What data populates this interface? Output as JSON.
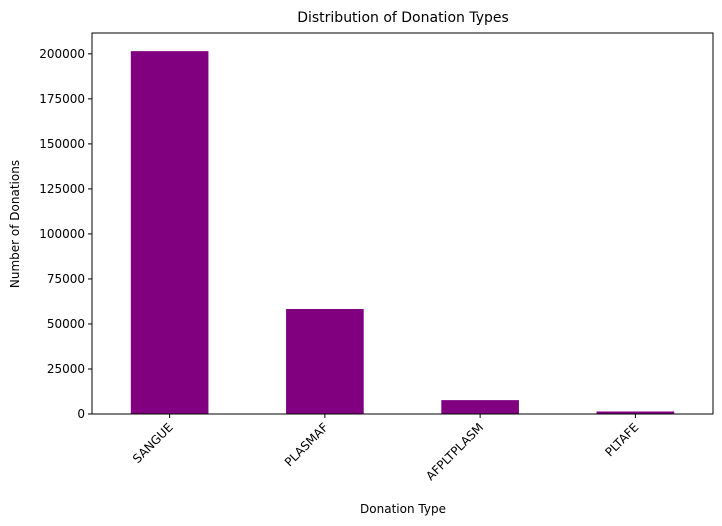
{
  "chart_data": {
    "type": "bar",
    "title": "Distribution of Donation Types",
    "xlabel": "Donation Type",
    "ylabel": "Number of Donations",
    "categories": [
      "SANGUE",
      "PLASMAF",
      "AFPLTPLASM",
      "PLTAFE"
    ],
    "values": [
      201500,
      58300,
      7700,
      1400
    ],
    "ylim": [
      0,
      211575
    ],
    "yticks": [
      0,
      25000,
      50000,
      75000,
      100000,
      125000,
      150000,
      175000,
      200000
    ],
    "ytick_labels": [
      "0",
      "25000",
      "50000",
      "75000",
      "100000",
      "125000",
      "150000",
      "175000",
      "200000"
    ],
    "bar_color": "#800080",
    "grid": false,
    "legend": "none",
    "xtick_rotation": 45
  }
}
